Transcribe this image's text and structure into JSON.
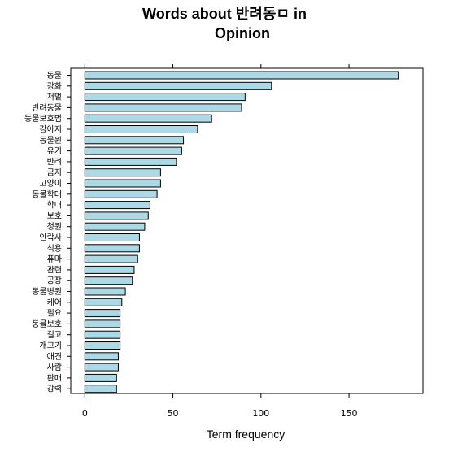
{
  "chart_data": {
    "type": "bar",
    "orientation": "horizontal",
    "title_line1": "Words about 반려동ㅁ in",
    "title_line2": "Opinion",
    "xlabel": "Term frequency",
    "ylabel": "",
    "xlim": [
      -8,
      192
    ],
    "xticks": [
      0,
      50,
      100,
      150
    ],
    "categories": [
      "동물",
      "강화",
      "처벌",
      "반려동물",
      "동물보호법",
      "강아지",
      "동물원",
      "유기",
      "반려",
      "금지",
      "고양이",
      "동물학대",
      "학대",
      "보호",
      "청원",
      "안락사",
      "식용",
      "퓨마",
      "관련",
      "공장",
      "동물병원",
      "케어",
      "필요",
      "동물보호",
      "길고",
      "개고기",
      "애견",
      "사람",
      "판매",
      "강력"
    ],
    "values": [
      178,
      106,
      91,
      89,
      72,
      64,
      56,
      55,
      52,
      43,
      43,
      41,
      37,
      36,
      34,
      31,
      31,
      30,
      28,
      27,
      23,
      21,
      20,
      20,
      20,
      20,
      19,
      19,
      18,
      18
    ],
    "bar_color": "#ADD8E6",
    "grid": false
  }
}
